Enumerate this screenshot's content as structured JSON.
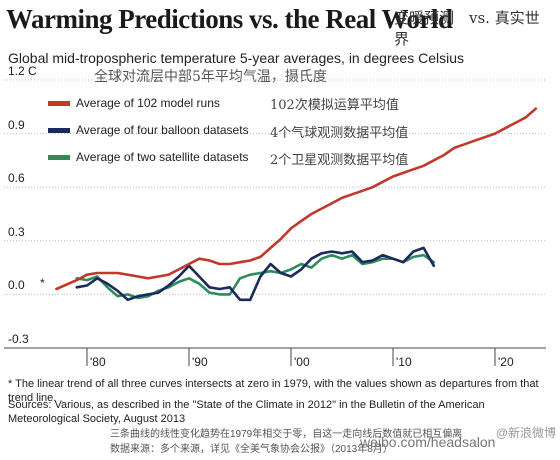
{
  "header": {
    "title": "Warming Predictions vs. the Real World",
    "title_cn": "变暖预测　vs. 真实世界",
    "subtitle": "Global mid-tropospheric temperature 5-year averages, in degrees Celsius",
    "subtitle_cn": "全球对流层中部5年平均气温，摄氏度"
  },
  "legend": {
    "items": [
      {
        "label": "Average of 102 model runs",
        "label_cn": "102次模拟运算平均值",
        "color": "#c0392b"
      },
      {
        "label": "Average of four balloon datasets",
        "label_cn": "4个气球观测数据平均值",
        "color": "#1a2a5e"
      },
      {
        "label": "Average of two satellite datasets",
        "label_cn": "2个卫星观测数据平均值",
        "color": "#2e8b5a"
      }
    ]
  },
  "colors": {
    "model": "#c0392b",
    "balloon": "#1a2a5e",
    "satellite": "#2e8b5a",
    "grid": "#bdbdbd"
  },
  "footer": {
    "star": "*",
    "footnote": "* The linear trend of all three curves intersects at zero in 1979, with the values shown as departures from that trend line.",
    "sources": "Sources: Various, as described in the \"State of the Climate in 2012\" in the Bulletin of the American Meteorological Society, August 2013",
    "cn_line1": "三条曲线的线性变化趋势在1979年相交于零，自这一走向线后数值就已相互偏离",
    "cn_line2": "数据来源：多个来源，详见《全美气象协会公报》（2013年8月）",
    "watermark": "weibo.com/headsalon",
    "watermark_badge": "@新浪微博"
  },
  "chart_data": {
    "type": "line",
    "title": "Warming Predictions vs. the Real World",
    "ylabel": "",
    "xlabel": "",
    "xlim": [
      1975,
      2025
    ],
    "ylim": [
      -0.3,
      1.2
    ],
    "y_ticks": [
      {
        "value": 1.2,
        "label": "1.2 C"
      },
      {
        "value": 0.9,
        "label": "0.9"
      },
      {
        "value": 0.6,
        "label": "0.6"
      },
      {
        "value": 0.3,
        "label": "0.3"
      },
      {
        "value": 0.0,
        "label": "0.0"
      },
      {
        "value": -0.3,
        "label": "-0.3"
      }
    ],
    "x_ticks": [
      {
        "value": 1980,
        "label": "'80"
      },
      {
        "value": 1990,
        "label": "'90"
      },
      {
        "value": 2000,
        "label": "'00"
      },
      {
        "value": 2010,
        "label": "'10"
      },
      {
        "value": 2020,
        "label": "'20"
      }
    ],
    "grid": true,
    "legend_position": "top-left",
    "series": [
      {
        "name": "Average of 102 model runs",
        "color": "#c0392b",
        "x": [
          1977,
          1979,
          1980,
          1981,
          1982,
          1983,
          1984,
          1985,
          1986,
          1987,
          1988,
          1989,
          1990,
          1991,
          1992,
          1993,
          1994,
          1995,
          1996,
          1997,
          1998,
          1999,
          2000,
          2001,
          2002,
          2003,
          2004,
          2005,
          2006,
          2007,
          2008,
          2009,
          2010,
          2011,
          2012,
          2013,
          2014,
          2015,
          2016,
          2017,
          2018,
          2019,
          2020,
          2021,
          2022,
          2023,
          2024
        ],
        "y": [
          0.03,
          0.08,
          0.11,
          0.12,
          0.12,
          0.12,
          0.11,
          0.1,
          0.09,
          0.1,
          0.11,
          0.14,
          0.17,
          0.2,
          0.19,
          0.17,
          0.17,
          0.18,
          0.19,
          0.21,
          0.26,
          0.31,
          0.37,
          0.41,
          0.45,
          0.48,
          0.51,
          0.54,
          0.56,
          0.58,
          0.6,
          0.63,
          0.66,
          0.68,
          0.7,
          0.72,
          0.75,
          0.78,
          0.82,
          0.84,
          0.86,
          0.88,
          0.9,
          0.93,
          0.96,
          0.99,
          1.04
        ]
      },
      {
        "name": "Average of four balloon datasets",
        "color": "#1a2a5e",
        "x": [
          1979,
          1980,
          1981,
          1982,
          1983,
          1984,
          1985,
          1986,
          1987,
          1988,
          1989,
          1990,
          1991,
          1992,
          1993,
          1994,
          1995,
          1996,
          1997,
          1998,
          1999,
          2000,
          2001,
          2002,
          2003,
          2004,
          2005,
          2006,
          2007,
          2008,
          2009,
          2010,
          2011,
          2012,
          2013,
          2014
        ],
        "y": [
          0.04,
          0.05,
          0.09,
          0.06,
          0.02,
          -0.03,
          -0.01,
          0.0,
          0.01,
          0.05,
          0.1,
          0.16,
          0.1,
          0.04,
          0.03,
          0.04,
          -0.03,
          -0.03,
          0.1,
          0.17,
          0.12,
          0.1,
          0.14,
          0.2,
          0.23,
          0.24,
          0.23,
          0.24,
          0.18,
          0.19,
          0.22,
          0.2,
          0.18,
          0.24,
          0.26,
          0.16
        ]
      },
      {
        "name": "Average of two satellite datasets",
        "color": "#2e8b5a",
        "x": [
          1979,
          1980,
          1981,
          1982,
          1983,
          1984,
          1985,
          1986,
          1987,
          1988,
          1989,
          1990,
          1991,
          1992,
          1993,
          1994,
          1995,
          1996,
          1997,
          1998,
          1999,
          2000,
          2001,
          2002,
          2003,
          2004,
          2005,
          2006,
          2007,
          2008,
          2009,
          2010,
          2011,
          2012,
          2013,
          2014
        ],
        "y": [
          0.09,
          0.08,
          0.1,
          0.04,
          -0.01,
          0.0,
          -0.02,
          -0.01,
          0.02,
          0.04,
          0.07,
          0.09,
          0.06,
          0.01,
          0.0,
          0.0,
          0.09,
          0.11,
          0.12,
          0.13,
          0.12,
          0.14,
          0.17,
          0.15,
          0.2,
          0.22,
          0.2,
          0.22,
          0.17,
          0.18,
          0.2,
          0.2,
          0.18,
          0.21,
          0.22,
          0.18
        ]
      }
    ]
  }
}
